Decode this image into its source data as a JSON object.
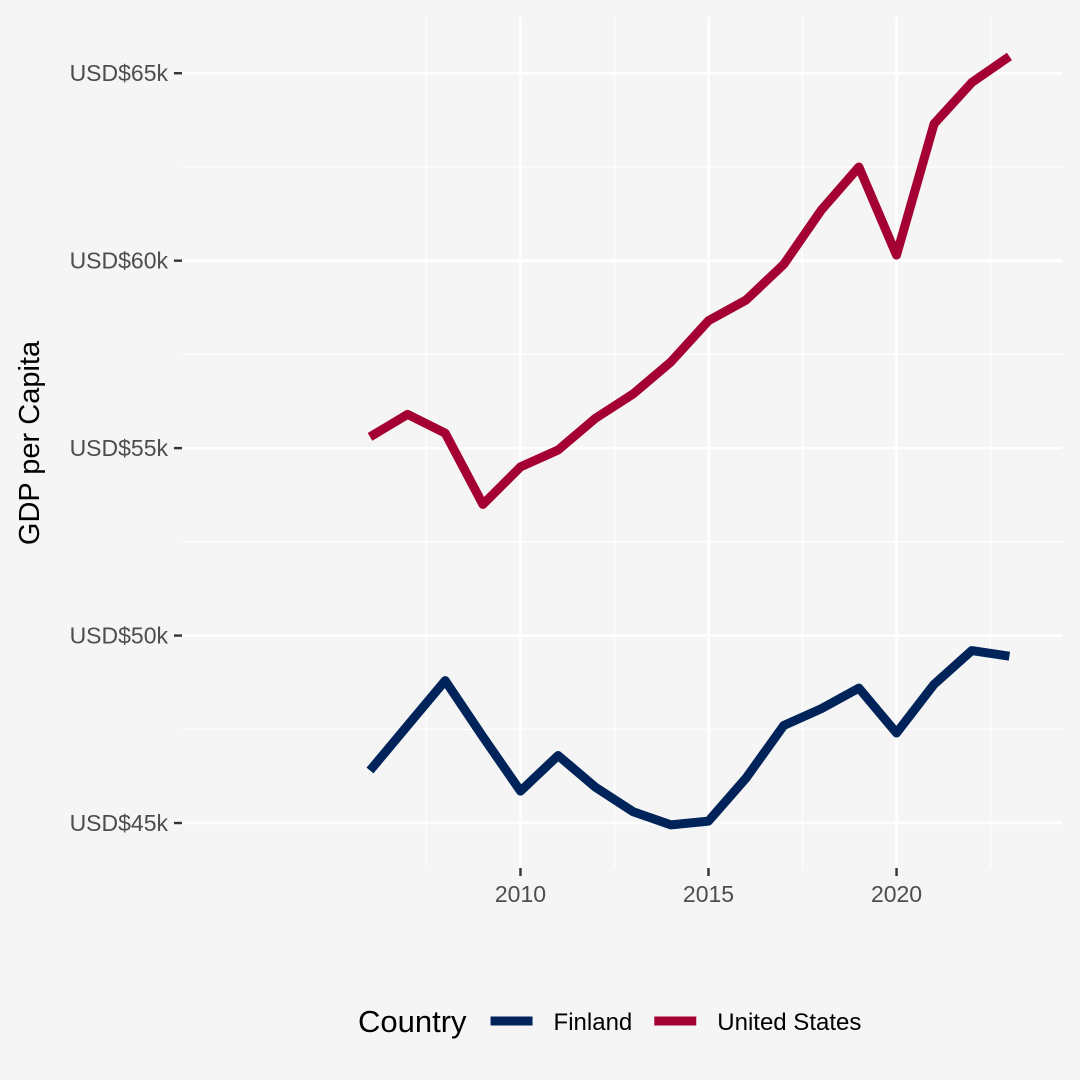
{
  "chart_data": {
    "type": "line",
    "title": "",
    "xlabel": "",
    "ylabel": "GDP per Capita",
    "x": [
      2006,
      2007,
      2008,
      2009,
      2010,
      2011,
      2012,
      2013,
      2014,
      2015,
      2016,
      2017,
      2018,
      2019,
      2020,
      2021,
      2022,
      2023
    ],
    "xlim": [
      2001,
      2024.4
    ],
    "ylim": [
      43800,
      66500
    ],
    "x_ticks": [
      2010,
      2015,
      2020
    ],
    "x_tick_labels": [
      "2010",
      "2015",
      "2020"
    ],
    "x_minor_ticks": [
      2007.5,
      2012.5,
      2017.5,
      2022.5
    ],
    "y_ticks": [
      45000,
      50000,
      55000,
      60000,
      65000
    ],
    "y_tick_labels": [
      "USD$45k",
      "USD$50k",
      "USD$55k",
      "USD$60k",
      "USD$65k"
    ],
    "y_minor_ticks": [
      47500,
      52500,
      57500,
      62500
    ],
    "grid": true,
    "legend_title": "Country",
    "legend_position": "bottom",
    "series": [
      {
        "name": "Finland",
        "color": "#002359",
        "values": [
          46400,
          47600,
          48800,
          47300,
          45850,
          46800,
          45950,
          45300,
          44950,
          45050,
          46200,
          47600,
          48050,
          48600,
          47400,
          48700,
          49600,
          49450
        ]
      },
      {
        "name": "United States",
        "color": "#a50034",
        "values": [
          55300,
          55900,
          55400,
          53500,
          54500,
          54950,
          55800,
          56450,
          57300,
          58400,
          58950,
          59900,
          61350,
          62500,
          60150,
          63650,
          64750,
          65450
        ]
      }
    ]
  }
}
